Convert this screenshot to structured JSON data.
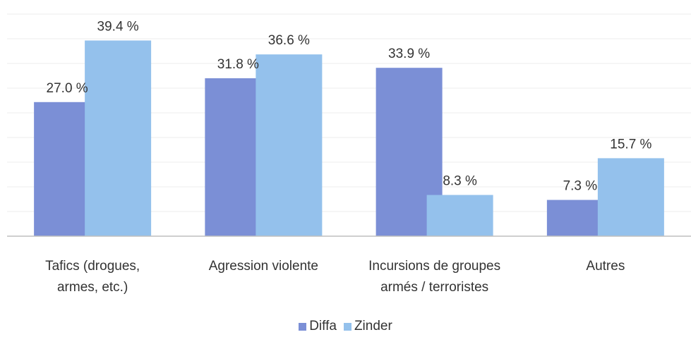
{
  "chart_data": {
    "type": "bar",
    "categories": [
      [
        "Tafics (drogues,",
        "armes, etc.)"
      ],
      [
        "Agression violente"
      ],
      [
        "Incursions de groupes",
        "armés / terroristes"
      ],
      [
        "Autres"
      ]
    ],
    "series": [
      {
        "name": "Diffa",
        "values": [
          27.0,
          31.8,
          33.9,
          7.3
        ],
        "labels": [
          "27.0 %",
          "31.8 %",
          "33.9 %",
          "7.3 %"
        ],
        "color": "#7b8fd6"
      },
      {
        "name": "Zinder",
        "values": [
          39.4,
          36.6,
          8.3,
          15.7
        ],
        "labels": [
          "39.4 %",
          "36.6 %",
          "8.3 %",
          "15.7 %"
        ],
        "color": "#94c1ec"
      }
    ],
    "ylim": [
      0,
      45
    ],
    "grid": true,
    "legend": "bottom"
  }
}
